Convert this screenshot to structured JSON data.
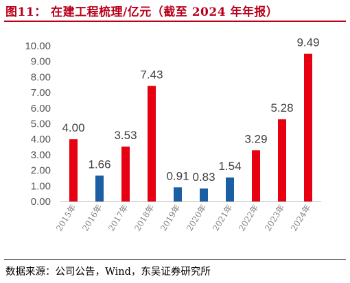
{
  "figure": {
    "title": "图11：  在建工程梳理/亿元（截至 2024 年年报）",
    "source": "数据来源：公司公告，Wind，东吴证券研究所"
  },
  "colors": {
    "red": "#e60012",
    "blue": "#1c5ea3",
    "accent": "#b8001a"
  },
  "chart_data": {
    "type": "bar",
    "categories": [
      "2015年",
      "2016年",
      "2017年",
      "2018年",
      "2019年",
      "2020年",
      "2021年",
      "2022年",
      "2023年",
      "2024年"
    ],
    "values": [
      4.0,
      1.66,
      3.53,
      7.43,
      0.91,
      0.83,
      1.54,
      3.29,
      5.28,
      9.49
    ],
    "data_labels": [
      "4.00",
      "1.66",
      "3.53",
      "7.43",
      "0.91",
      "0.83",
      "1.54",
      "3.29",
      "5.28",
      "9.49"
    ],
    "bar_colors": [
      "red",
      "blue",
      "red",
      "red",
      "blue",
      "blue",
      "blue",
      "red",
      "red",
      "red"
    ],
    "y_ticks": [
      "0.00",
      "1.00",
      "2.00",
      "3.00",
      "4.00",
      "5.00",
      "6.00",
      "7.00",
      "8.00",
      "9.00",
      "10.00"
    ],
    "ylim": [
      0,
      10
    ],
    "grid": false,
    "legend": "none"
  }
}
